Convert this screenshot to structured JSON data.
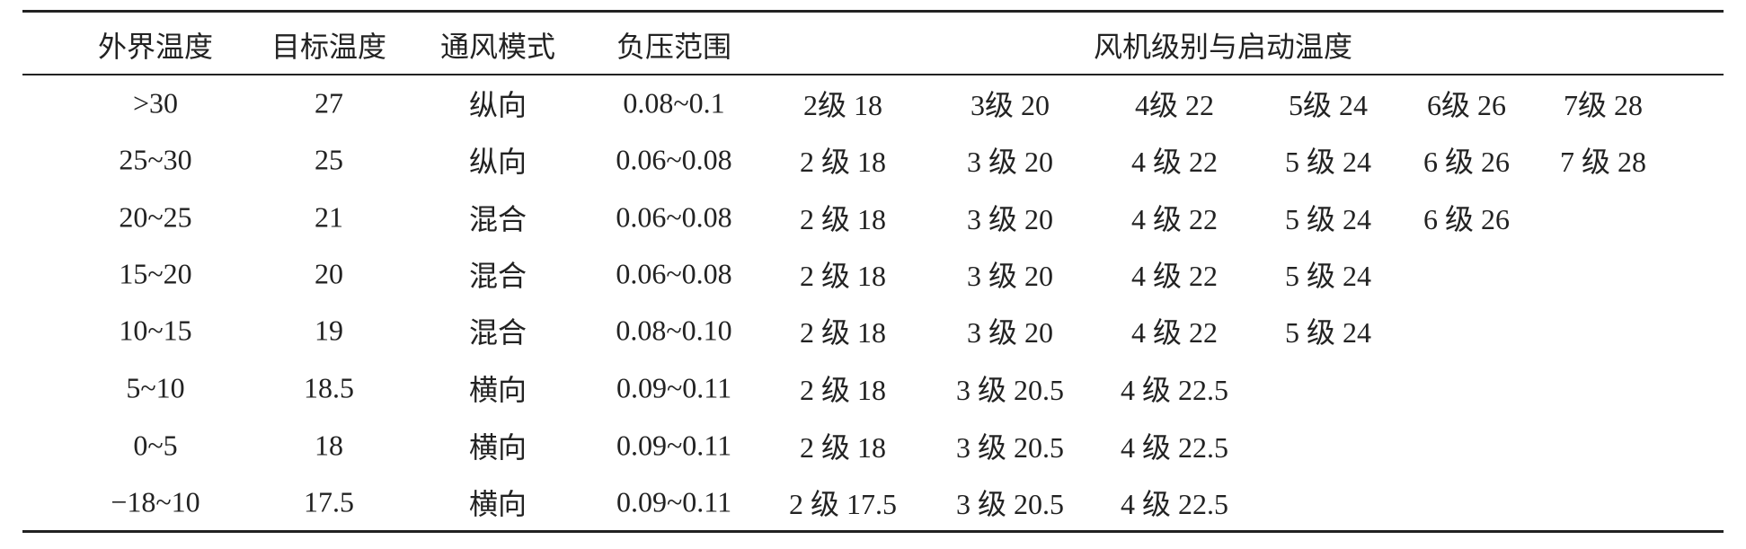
{
  "table": {
    "header": [
      "外界温度",
      "目标温度",
      "通风模式",
      "负压范围",
      "风机级别与启动温度"
    ],
    "rows": [
      [
        ">30",
        "27",
        "纵向",
        "0.08~0.1",
        "2级 18",
        "3级 20",
        "4级 22",
        "5级 24",
        "6级 26",
        "7级 28"
      ],
      [
        "25~30",
        "25",
        "纵向",
        "0.06~0.08",
        "2 级 18",
        "3 级 20",
        "4 级 22",
        "5 级 24",
        "6 级 26",
        "7 级 28"
      ],
      [
        "20~25",
        "21",
        "混合",
        "0.06~0.08",
        "2 级 18",
        "3 级 20",
        "4 级 22",
        "5 级 24",
        "6 级 26"
      ],
      [
        "15~20",
        "20",
        "混合",
        "0.06~0.08",
        "2 级 18",
        "3 级 20",
        "4 级 22",
        "5 级 24"
      ],
      [
        "10~15",
        "19",
        "混合",
        "0.08~0.10",
        "2 级 18",
        "3 级 20",
        "4 级 22",
        "5 级 24"
      ],
      [
        "5~10",
        "18.5",
        "横向",
        "0.09~0.11",
        "2 级 18",
        "3 级 20.5",
        "4 级 22.5"
      ],
      [
        "0~5",
        "18",
        "横向",
        "0.09~0.11",
        "2 级 18",
        "3 级 20.5",
        "4 级 22.5"
      ],
      [
        "−18~10",
        "17.5",
        "横向",
        "0.09~0.11",
        "2 级 17.5",
        "3 级 20.5",
        "4 级 22.5"
      ]
    ]
  }
}
